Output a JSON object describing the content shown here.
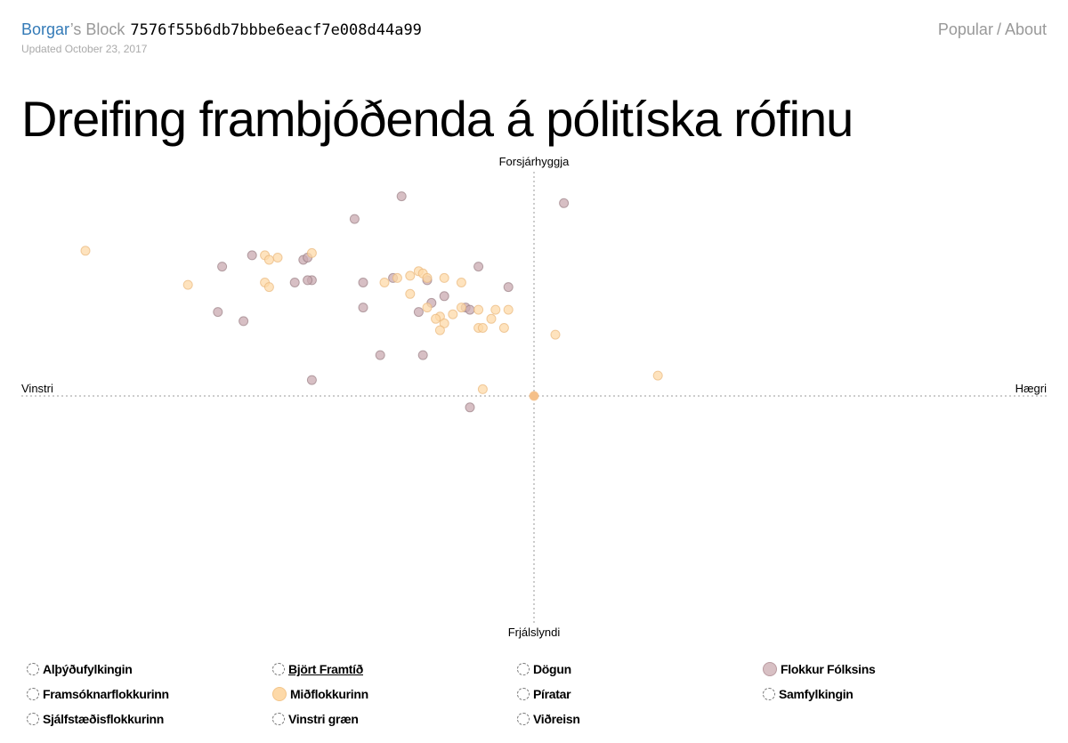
{
  "header": {
    "owner": "Borgar",
    "owner_suffix": "’s Block",
    "gist_id": "7576f55b6db7bbbe6eacf7e008d44a99",
    "updated": "Updated October 23, 2017",
    "nav_popular": "Popular",
    "nav_sep": "/",
    "nav_about": "About"
  },
  "title": "Dreifing frambjóðenda á pólitíska rófinu",
  "colors": {
    "flokkur_folksins": "#c9aab0",
    "midflokkurinn": "#fdd9a8",
    "flokkur_folksins_stroke": "#9a7f85",
    "midflokkurinn_stroke": "#e9b77a",
    "axis": "#999999",
    "origin_dot": "#f5c08a"
  },
  "legend": [
    {
      "label": "Alþýðufylkingin",
      "active": false,
      "color": null
    },
    {
      "label": "Björt Framtíð",
      "active": false,
      "color": null,
      "underline": true
    },
    {
      "label": "Dögun",
      "active": false,
      "color": null
    },
    {
      "label": "Flokkur Fólksins",
      "active": true,
      "color": "#d8c0c4"
    },
    {
      "label": "Framsóknarflokkurinn",
      "active": false,
      "color": null
    },
    {
      "label": "Miðflokkurinn",
      "active": true,
      "color": "#fdd9a8"
    },
    {
      "label": "Píratar",
      "active": false,
      "color": null
    },
    {
      "label": "Samfylkingin",
      "active": false,
      "color": null
    },
    {
      "label": "Sjálfstæðisflokkurinn",
      "active": false,
      "color": null
    },
    {
      "label": "Vinstri græn",
      "active": false,
      "color": null
    },
    {
      "label": "Viðreisn",
      "active": false,
      "color": null
    }
  ],
  "chart_data": {
    "type": "scatter",
    "title": "",
    "axes": {
      "x_left": "Vinstri",
      "x_right": "Hægri",
      "y_top": "Forsjárhyggja",
      "y_bottom": "Frjálslyndi"
    },
    "xlim": [
      -1,
      1
    ],
    "ylim": [
      -1,
      1
    ],
    "grid": false,
    "series": [
      {
        "name": "Flokkur Fólksins",
        "points": [
          [
            0.07,
            0.85
          ],
          [
            -0.73,
            0.57
          ],
          [
            -0.66,
            0.62
          ],
          [
            -0.54,
            0.6
          ],
          [
            -0.74,
            0.37
          ],
          [
            -0.68,
            0.33
          ],
          [
            -0.56,
            0.5
          ],
          [
            -0.42,
            0.78
          ],
          [
            -0.31,
            0.88
          ],
          [
            -0.33,
            0.52
          ],
          [
            -0.53,
            0.61
          ],
          [
            -0.25,
            0.51
          ],
          [
            -0.4,
            0.5
          ],
          [
            -0.52,
            0.51
          ],
          [
            -0.4,
            0.39
          ],
          [
            -0.52,
            0.07
          ],
          [
            -0.21,
            0.44
          ],
          [
            -0.53,
            0.51
          ],
          [
            -0.36,
            0.18
          ],
          [
            -0.06,
            0.48
          ],
          [
            -0.13,
            0.57
          ],
          [
            -0.27,
            0.37
          ],
          [
            -0.24,
            0.41
          ],
          [
            -0.16,
            0.39
          ],
          [
            -0.15,
            0.38
          ],
          [
            -0.26,
            0.18
          ],
          [
            -0.15,
            -0.05
          ]
        ]
      },
      {
        "name": "Miðflokkurinn",
        "points": [
          [
            -1.05,
            0.64
          ],
          [
            -0.81,
            0.49
          ],
          [
            -0.63,
            0.62
          ],
          [
            -0.6,
            0.61
          ],
          [
            -0.52,
            0.63
          ],
          [
            -0.62,
            0.6
          ],
          [
            -0.63,
            0.5
          ],
          [
            -0.62,
            0.48
          ],
          [
            -0.35,
            0.5
          ],
          [
            -0.32,
            0.52
          ],
          [
            -0.29,
            0.53
          ],
          [
            -0.27,
            0.55
          ],
          [
            -0.26,
            0.54
          ],
          [
            -0.25,
            0.52
          ],
          [
            -0.21,
            0.52
          ],
          [
            -0.17,
            0.5
          ],
          [
            -0.29,
            0.45
          ],
          [
            -0.25,
            0.39
          ],
          [
            -0.22,
            0.35
          ],
          [
            -0.23,
            0.34
          ],
          [
            -0.19,
            0.36
          ],
          [
            -0.21,
            0.32
          ],
          [
            -0.22,
            0.29
          ],
          [
            -0.13,
            0.38
          ],
          [
            -0.06,
            0.38
          ],
          [
            -0.09,
            0.38
          ],
          [
            -0.1,
            0.34
          ],
          [
            -0.13,
            0.3
          ],
          [
            -0.12,
            0.03
          ],
          [
            0.05,
            0.27
          ],
          [
            0.29,
            0.09
          ],
          [
            -0.17,
            0.39
          ],
          [
            -0.07,
            0.3
          ],
          [
            -0.12,
            0.3
          ]
        ]
      },
      {
        "name": "",
        "points": [
          [
            0.0,
            0.0
          ]
        ],
        "note": ""
      }
    ]
  }
}
